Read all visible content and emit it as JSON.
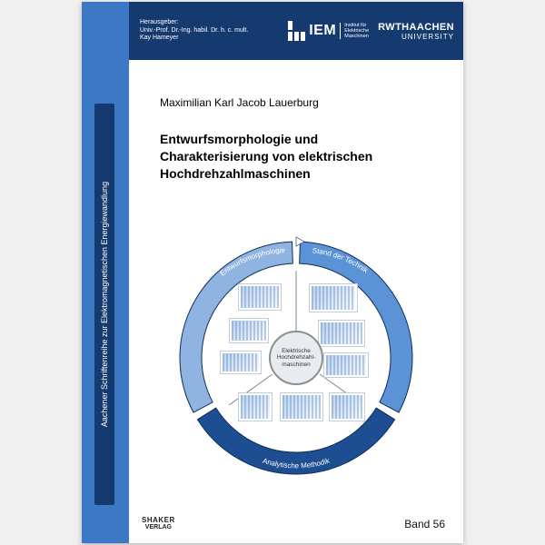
{
  "colors": {
    "band_dark": "#153a6f",
    "band_mid": "#3d78c4",
    "ring_top": "#2a5ea8",
    "ring_left": "#1d4e92",
    "ring_right": "#5c93d6",
    "ring_bot": "#8fb4e2",
    "ring_stroke": "#0f2f58",
    "page_bg": "#ffffff"
  },
  "header": {
    "editor_line1": "Herausgeber:",
    "editor_line2": "Univ.-Prof. Dr.-Ing. habil. Dr. h. c. mult.",
    "editor_line3": "Kay Hameyer",
    "iem": "IEM",
    "iem_sub1": "Institut für",
    "iem_sub2": "Elektrische",
    "iem_sub3": "Maschinen",
    "rwth_main": "RWTHAACHEN",
    "rwth_sub": "UNIVERSITY"
  },
  "spine": {
    "series": "Aachener Schriftenreihe zur Elektromagnetischen Energiewandlung"
  },
  "main": {
    "author": "Maximilian Karl Jacob Lauerburg",
    "title_l1": "Entwurfsmorphologie und",
    "title_l2": "Charakterisierung von elektrischen",
    "title_l3": "Hochdrehzahlmaschinen"
  },
  "diagram": {
    "center_l1": "Elektrische",
    "center_l2": "Hochdrehzahl-",
    "center_l3": "maschinen",
    "seg_topleft": "Entwurfsmorphologie",
    "seg_topright": "Stand der Technik",
    "seg_bottom": "Analytische Methodik",
    "ring": {
      "outer_r": 128,
      "inner_r": 104,
      "gap_deg": 2
    }
  },
  "footer": {
    "verlag_l1": "SHAKER",
    "verlag_l2": "VERLAG",
    "band": "Band 56"
  }
}
